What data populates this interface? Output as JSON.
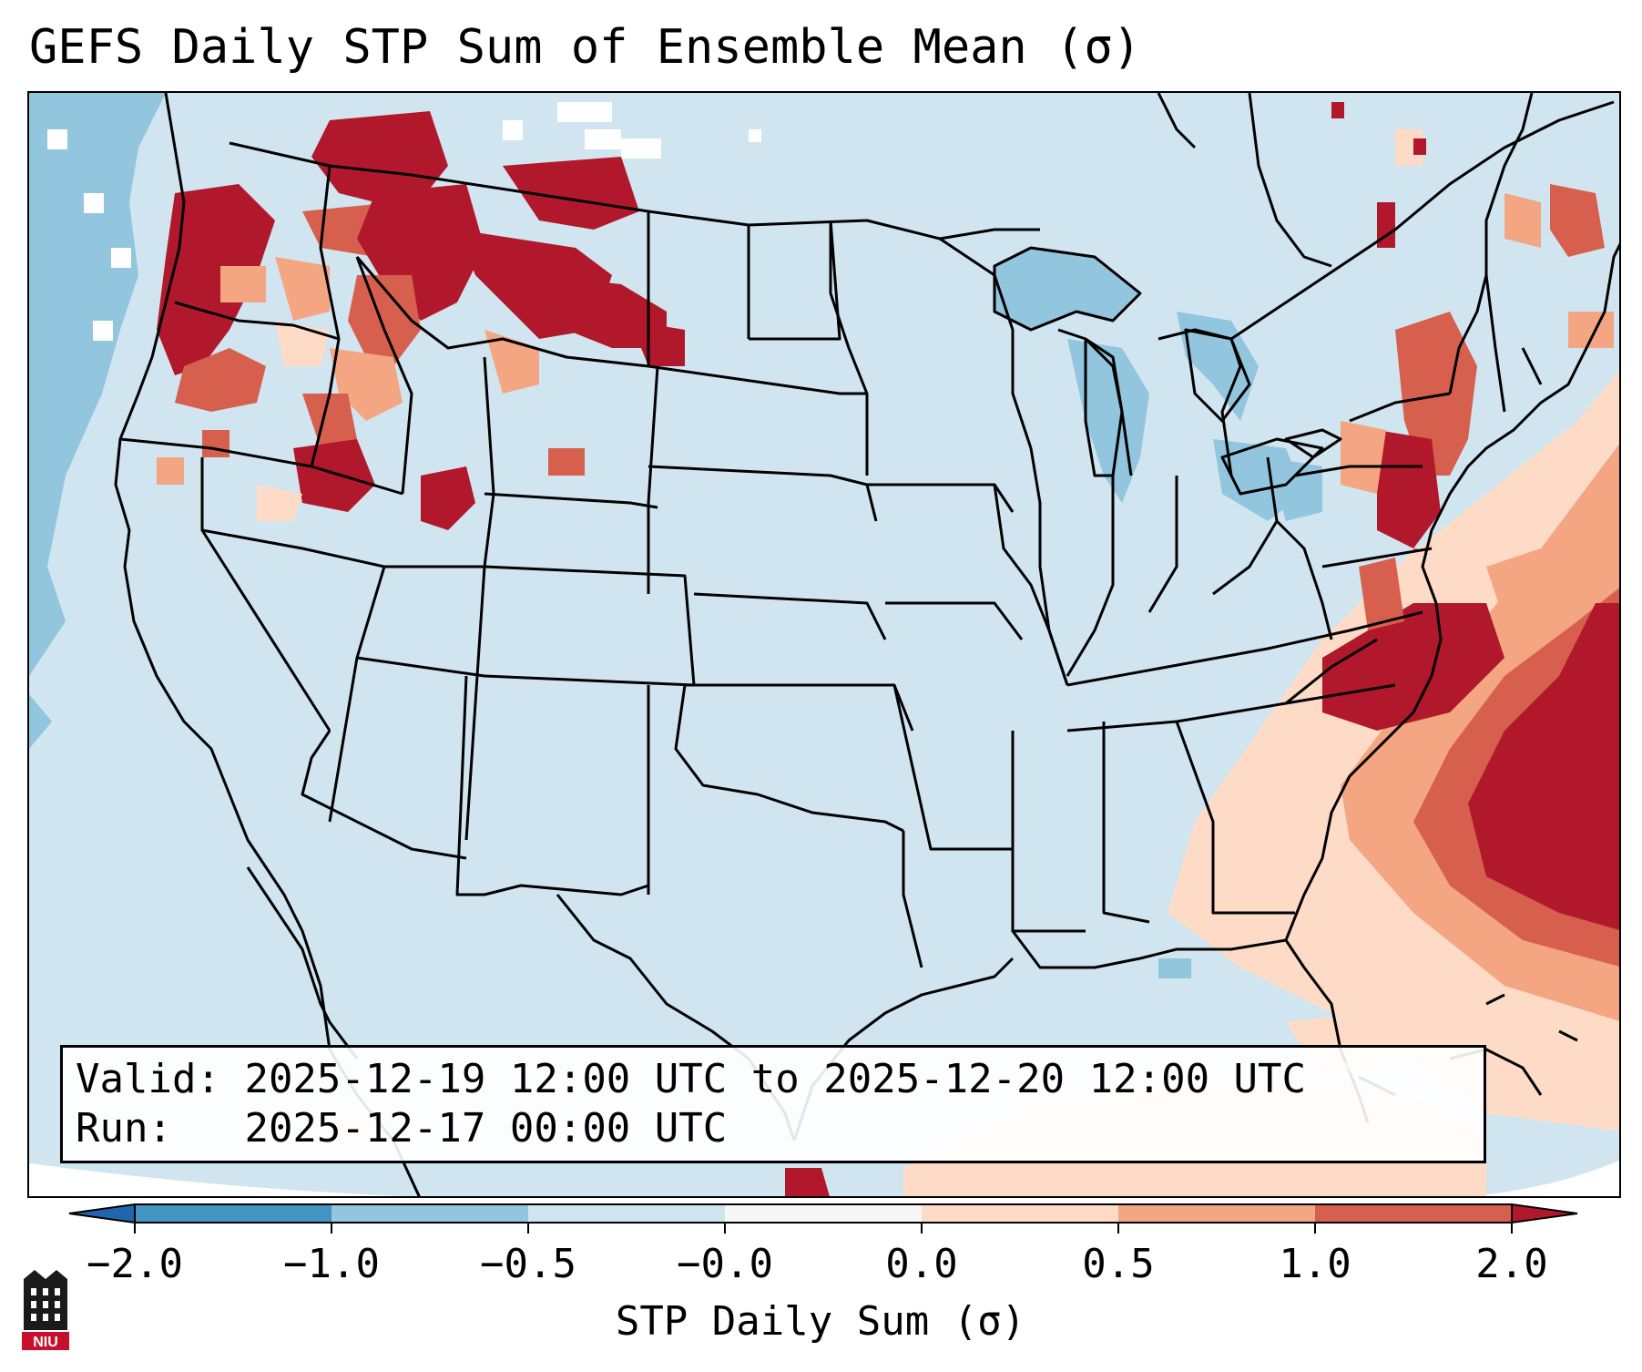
{
  "title": "GEFS Daily STP Sum of Ensemble Mean (σ)",
  "info": {
    "valid_label": "Valid:",
    "valid_value": "2025-12-19 12:00 UTC to 2025-12-20 12:00 UTC",
    "run_label": "Run:",
    "run_value": "2025-12-17 00:00 UTC"
  },
  "colorbar": {
    "label": "STP Daily Sum (σ)",
    "ticks": [
      "−2.0",
      "−1.0",
      "−0.5",
      "−0.0",
      "0.0",
      "0.5",
      "1.0",
      "2.0"
    ],
    "colors": [
      "#2166ac",
      "#4393c3",
      "#92c5de",
      "#d1e5f0",
      "#f7f7f7",
      "#fddbc7",
      "#f4a582",
      "#d6604d",
      "#b2182b"
    ],
    "extend": "both"
  },
  "logo": {
    "name": "NIU logo",
    "text": "NIU"
  },
  "colors": {
    "background_field": "#d1e5f0",
    "strong_positive": "#b2182b",
    "positive": "#d6604d",
    "weak_positive": "#f4a582",
    "slight_positive": "#fddbc7",
    "slight_negative": "#92c5de",
    "negative": "#4393c3"
  }
}
